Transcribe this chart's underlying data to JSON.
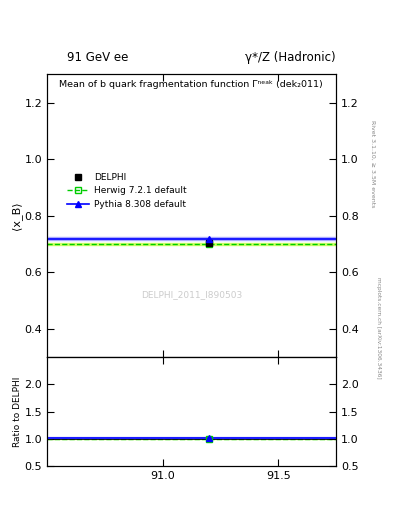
{
  "title_top_left": "91 GeV ee",
  "title_top_right": "γ*/Z (Hadronic)",
  "plot_title": "Mean of b quark fragmentation function Γⁿᵉᵃᵏ (dek₂011)",
  "ylabel_main": "⟨x_B⟩",
  "ylabel_ratio": "Ratio to DELPHI",
  "watermark": "DELPHI_2011_I890503",
  "right_label_top": "Rivet 3.1.10, ≥ 3.5M events",
  "right_label_bottom": "mcplots.cern.ch [arXiv:1306.3436]",
  "xlim": [
    90.5,
    91.75
  ],
  "ylim_main": [
    0.3,
    1.3
  ],
  "ylim_ratio": [
    0.5,
    2.5
  ],
  "xticks": [
    91.0,
    91.5
  ],
  "yticks_main": [
    0.4,
    0.6,
    0.8,
    1.0,
    1.2
  ],
  "yticks_ratio": [
    0.5,
    1.0,
    1.5,
    2.0
  ],
  "data_x": 91.2,
  "data_y": 0.703,
  "data_error": 0.008,
  "herwig_y": 0.7,
  "herwig_color": "#00cc00",
  "pythia_y": 0.718,
  "pythia_color": "#0000ff",
  "herwig_ratio": 0.996,
  "pythia_ratio": 1.021,
  "herwig_band_low": 0.695,
  "herwig_band_high": 0.705,
  "pythia_band_low": 0.713,
  "pythia_band_high": 0.723,
  "herwig_band_color": "#ccff66",
  "pythia_band_color": "#aaaaff",
  "herwig_ratio_band_low": 0.99,
  "herwig_ratio_band_high": 1.0,
  "pythia_ratio_band_low": 1.016,
  "pythia_ratio_band_high": 1.026,
  "data_color": "#000000",
  "background_color": "#ffffff",
  "legend_entries": [
    "DELPHI",
    "Herwig 7.2.1 default",
    "Pythia 8.308 default"
  ]
}
